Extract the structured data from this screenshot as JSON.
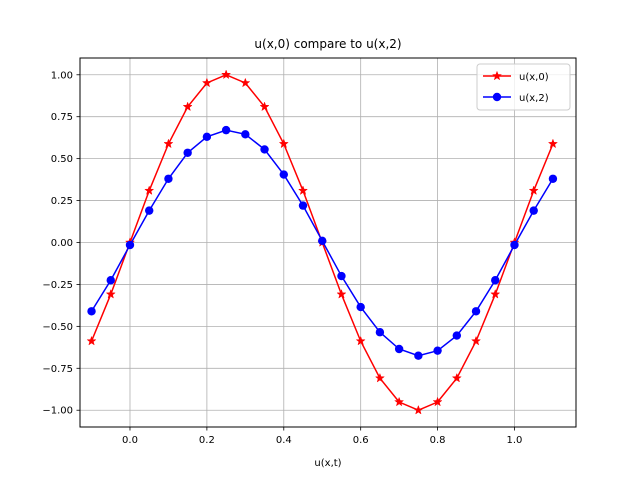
{
  "chart_data": {
    "type": "line",
    "title": "u(x,0) compare to  u(x,2)",
    "xlabel": "u(x,t)",
    "ylabel": "",
    "xlim": [
      -0.13,
      1.16
    ],
    "ylim": [
      -1.1,
      1.1
    ],
    "xticks": [
      0.0,
      0.2,
      0.4,
      0.6,
      0.8,
      1.0
    ],
    "xtick_labels": [
      "0.0",
      "0.2",
      "0.4",
      "0.6",
      "0.8",
      "1.0"
    ],
    "yticks": [
      1.0,
      0.75,
      0.5,
      0.25,
      0.0,
      -0.25,
      -0.5,
      -0.75,
      -1.0
    ],
    "ytick_labels": [
      "1.00",
      "0.75",
      "0.50",
      "0.25",
      "0.00",
      "−0.25",
      "−0.50",
      "−0.75",
      "−1.00"
    ],
    "grid": true,
    "legend_position": "top-right",
    "x": [
      -0.1,
      -0.05,
      0.0,
      0.05,
      0.1,
      0.15,
      0.2,
      0.25,
      0.3,
      0.35,
      0.4,
      0.45,
      0.5,
      0.55,
      0.6,
      0.65,
      0.7,
      0.75,
      0.8,
      0.85,
      0.9,
      0.95,
      1.0,
      1.05,
      1.1
    ],
    "series": [
      {
        "name": "u(x,0)",
        "color": "#ff0000",
        "marker": "star",
        "values": [
          -0.588,
          -0.309,
          0.0,
          0.309,
          0.588,
          0.809,
          0.951,
          1.0,
          0.951,
          0.809,
          0.588,
          0.309,
          0.0,
          -0.309,
          -0.588,
          -0.809,
          -0.951,
          -1.0,
          -0.951,
          -0.809,
          -0.588,
          -0.309,
          0.0,
          0.309,
          0.588
        ]
      },
      {
        "name": "u(x,2)",
        "color": "#0000ff",
        "marker": "circle",
        "values": [
          -0.41,
          -0.225,
          -0.015,
          0.19,
          0.38,
          0.535,
          0.63,
          0.67,
          0.645,
          0.555,
          0.405,
          0.22,
          0.01,
          -0.2,
          -0.385,
          -0.535,
          -0.635,
          -0.675,
          -0.645,
          -0.555,
          -0.41,
          -0.225,
          -0.015,
          0.19,
          0.38
        ]
      }
    ]
  }
}
